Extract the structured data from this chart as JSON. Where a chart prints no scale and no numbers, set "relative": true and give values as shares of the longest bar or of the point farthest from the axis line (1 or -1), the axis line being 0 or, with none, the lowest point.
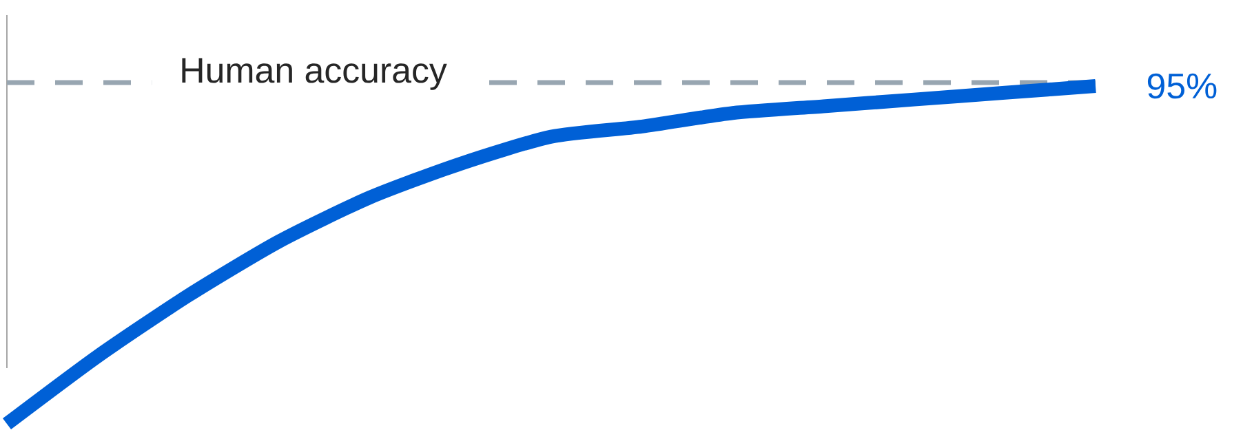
{
  "chart_data": {
    "type": "line",
    "relative": true,
    "categories": [
      null,
      null,
      null,
      null,
      null,
      null,
      null,
      null,
      null,
      null,
      null,
      null,
      null
    ],
    "series": [
      {
        "color": "#0060d6",
        "values": [
          0,
          0.2,
          0.38,
          0.54,
          0.67,
          0.77,
          0.85,
          0.88,
          0.92,
          0.94,
          0.96,
          0.98,
          1
        ]
      }
    ],
    "ref_lines": [
      {
        "axis": "y",
        "value": 1.01,
        "label": "Human accuracy",
        "color": "#98a6b1",
        "line_style": "dashed"
      }
    ],
    "annotations": [
      "95%"
    ],
    "marker": "none",
    "line_style": "solid"
  }
}
